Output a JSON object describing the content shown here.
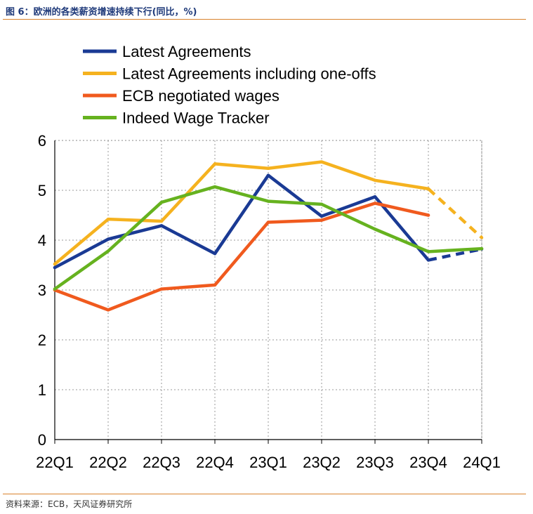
{
  "figure": {
    "title": "图 6：欧洲的各类薪资增速持续下行(同比，%)",
    "source": "资料来源：ECB，天风证券研究所"
  },
  "chart_data": {
    "type": "line",
    "categories": [
      "22Q1",
      "22Q2",
      "22Q3",
      "22Q4",
      "23Q1",
      "23Q2",
      "23Q3",
      "23Q4",
      "24Q1"
    ],
    "ylim": [
      0,
      6
    ],
    "yticks": [
      "0",
      "1",
      "2",
      "3",
      "4",
      "5",
      "6"
    ],
    "grid": true,
    "legend_position": "top-left",
    "series": [
      {
        "name": "Latest Agreements",
        "color": "#1a3a94",
        "values": [
          3.45,
          4.02,
          4.29,
          3.73,
          5.3,
          4.48,
          4.87,
          3.6,
          3.82
        ],
        "dashed_from_index": 7
      },
      {
        "name": "Latest Agreements including one-offs",
        "color": "#f5b21f",
        "values": [
          3.52,
          4.42,
          4.38,
          5.53,
          5.44,
          5.57,
          5.2,
          5.03,
          4.05
        ],
        "dashed_from_index": 7
      },
      {
        "name": "ECB negotiated wages",
        "color": "#f05a1e",
        "values": [
          3.0,
          2.6,
          3.02,
          3.1,
          4.36,
          4.4,
          4.74,
          4.5,
          null
        ],
        "dashed_from_index": null
      },
      {
        "name": "Indeed Wage Tracker",
        "color": "#66b21f",
        "values": [
          3.02,
          3.78,
          4.76,
          5.07,
          4.78,
          4.72,
          4.22,
          3.77,
          3.83
        ],
        "dashed_from_index": null
      }
    ]
  }
}
